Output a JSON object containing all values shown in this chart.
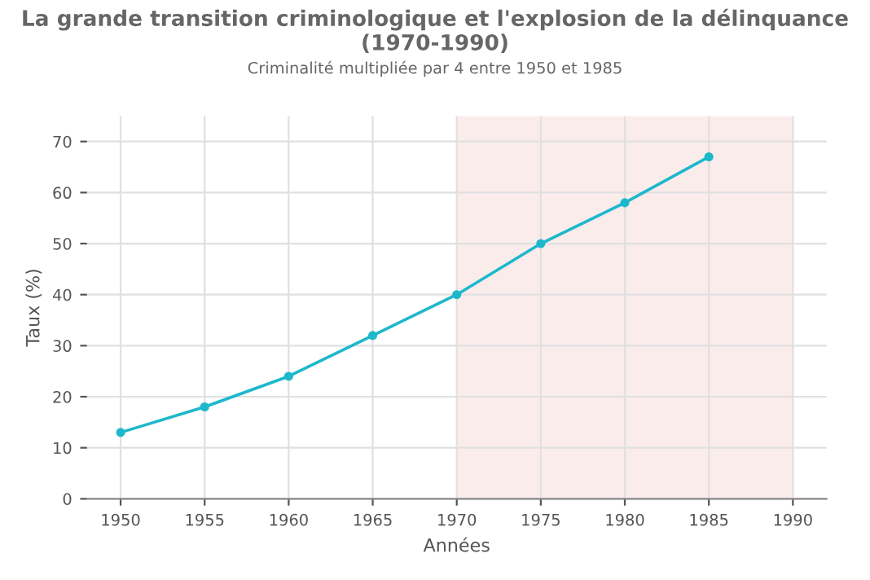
{
  "chart_data": {
    "type": "line",
    "title": "La grande transition criminologique et l'explosion de la délinquance (1970-1990)",
    "subtitle": "Criminalité multipliée par 4 entre 1950 et 1985",
    "xlabel": "Années",
    "ylabel": "Taux (%)",
    "x": [
      1950,
      1955,
      1960,
      1965,
      1970,
      1975,
      1980,
      1985
    ],
    "series": [
      {
        "color": "#1db8cc",
        "values": [
          13,
          18,
          24,
          32,
          40,
          50,
          58,
          67
        ]
      }
    ],
    "xlim": [
      1948,
      1992
    ],
    "xticks": [
      1950,
      1955,
      1960,
      1965,
      1970,
      1975,
      1980,
      1985,
      1990
    ],
    "ylim": [
      0,
      75
    ],
    "yticks": [
      0,
      10,
      20,
      30,
      40,
      50,
      60,
      70
    ],
    "bands": [
      {
        "axis": "x",
        "from": 1970,
        "to": 1990,
        "color": "#fbecec"
      }
    ],
    "grid": true,
    "marker": "circle",
    "line_style": "solid",
    "legend": false
  }
}
